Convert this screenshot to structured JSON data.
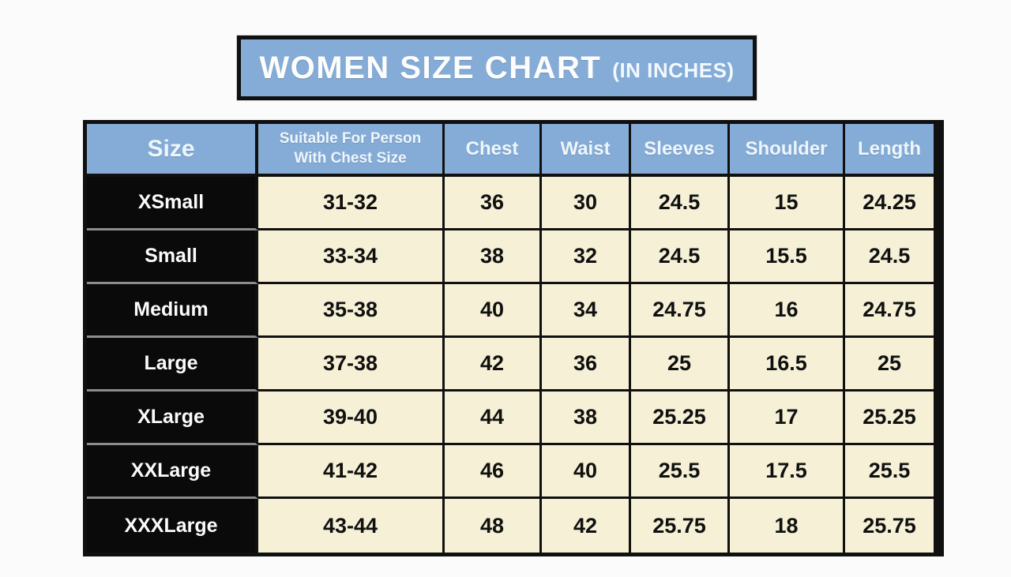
{
  "colors": {
    "page_bg": "#fbfbfb",
    "title_bg": "#85acd6",
    "header_bg": "#85acd6",
    "header_text": "#eef6fd",
    "row_label_bg": "#0a0a0a",
    "row_label_text": "#fbfbfb",
    "cell_bg": "#f5f0d6",
    "cell_text": "#101010",
    "grid_border": "#101010"
  },
  "title": {
    "main": "WOMEN SIZE CHART",
    "unit": "(IN INCHES)"
  },
  "chart_data": {
    "type": "table",
    "title": "WOMEN SIZE CHART (IN INCHES)",
    "units": "inches",
    "columns": [
      "Size",
      "Suitable For Person With Chest Size",
      "Chest",
      "Waist",
      "Sleeves",
      "Shoulder",
      "Length"
    ],
    "column_keys": [
      "size",
      "suitable-chest",
      "chest",
      "waist",
      "sleeves",
      "shoulder",
      "length"
    ],
    "rows": [
      [
        "XSmall",
        "31-32",
        "36",
        "30",
        "24.5",
        "15",
        "24.25"
      ],
      [
        "Small",
        "33-34",
        "38",
        "32",
        "24.5",
        "15.5",
        "24.5"
      ],
      [
        "Medium",
        "35-38",
        "40",
        "34",
        "24.75",
        "16",
        "24.75"
      ],
      [
        "Large",
        "37-38",
        "42",
        "36",
        "25",
        "16.5",
        "25"
      ],
      [
        "XLarge",
        "39-40",
        "44",
        "38",
        "25.25",
        "17",
        "25.25"
      ],
      [
        "XXLarge",
        "41-42",
        "46",
        "40",
        "25.5",
        "17.5",
        "25.5"
      ],
      [
        "XXXLarge",
        "43-44",
        "48",
        "42",
        "25.75",
        "18",
        "25.75"
      ]
    ]
  }
}
